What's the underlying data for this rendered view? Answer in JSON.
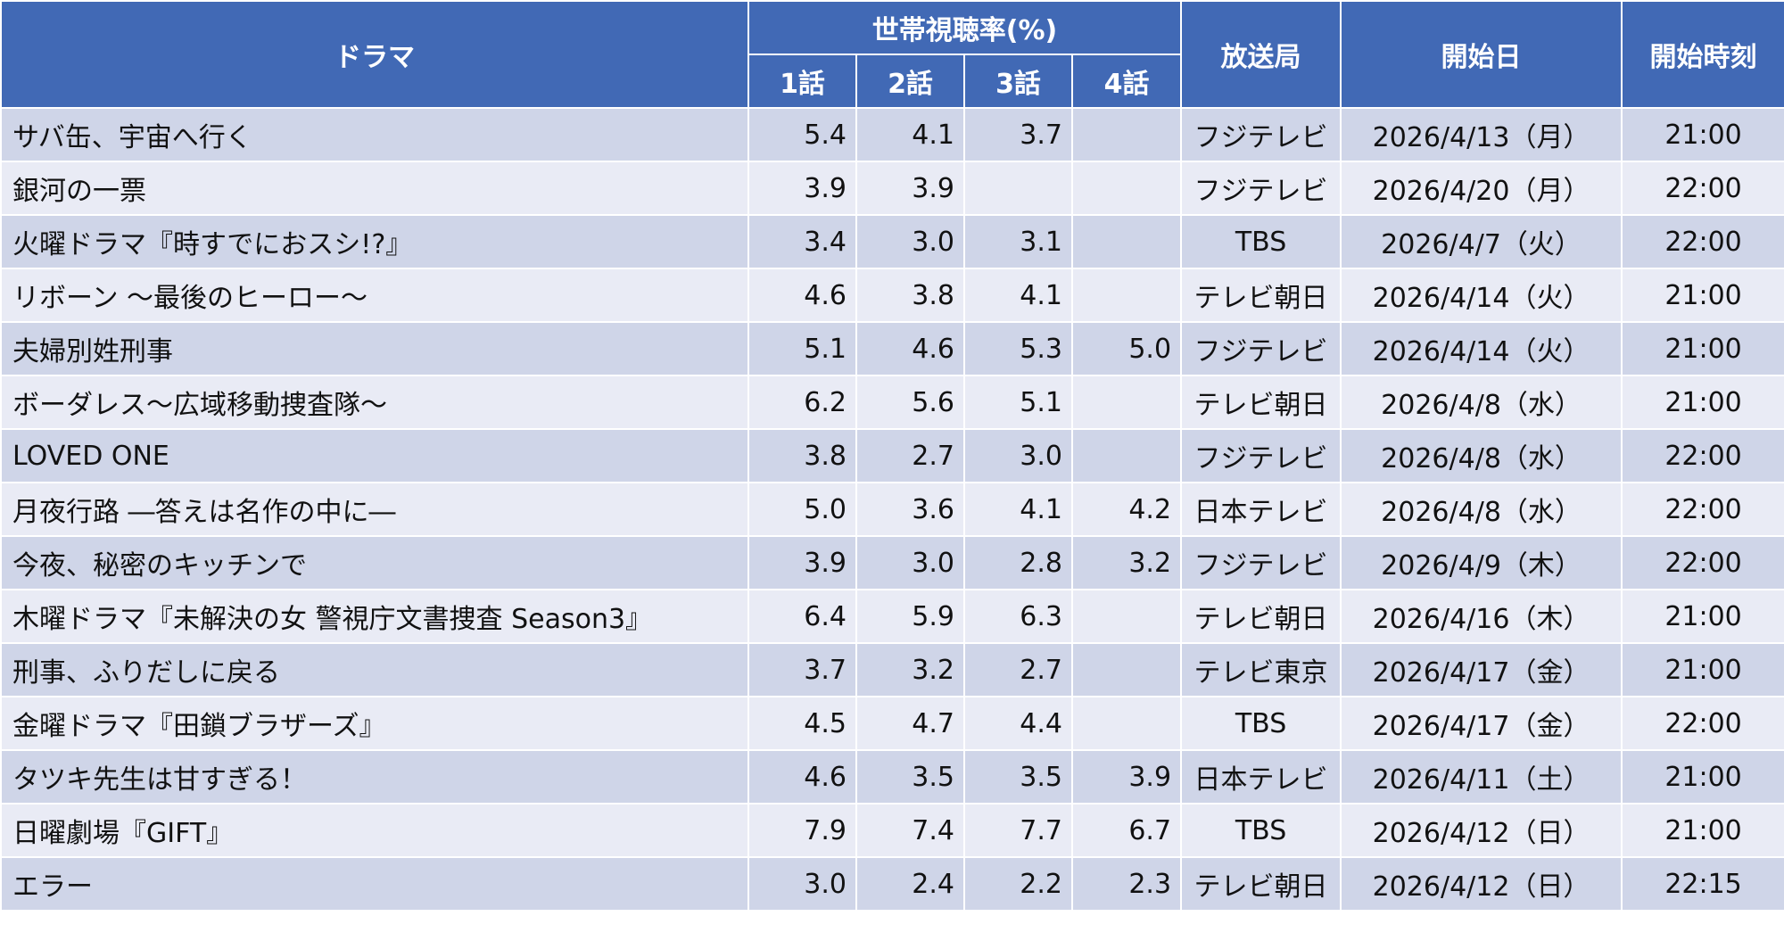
{
  "table": {
    "header": {
      "drama": "ドラマ",
      "ratings": "世帯視聴率(%)",
      "episodes": [
        "1話",
        "2話",
        "3話",
        "4話"
      ],
      "station": "放送局",
      "start_date": "開始日",
      "start_time": "開始時刻"
    },
    "rows": [
      [
        "サバ缶、宇宙へ行く",
        "5.4",
        "4.1",
        "3.7",
        null,
        "フジテレビ",
        "2026/4/13（月）",
        "21:00"
      ],
      [
        "銀河の一票",
        "3.9",
        "3.9",
        null,
        null,
        "フジテレビ",
        "2026/4/20（月）",
        "22:00"
      ],
      [
        "火曜ドラマ『時すでにおスシ!?』",
        "3.4",
        "3.0",
        "3.1",
        null,
        "TBS",
        "2026/4/7（火）",
        "22:00"
      ],
      [
        "リボーン ～最後のヒーロー～",
        "4.6",
        "3.8",
        "4.1",
        null,
        "テレビ朝日",
        "2026/4/14（火）",
        "21:00"
      ],
      [
        "夫婦別姓刑事",
        "5.1",
        "4.6",
        "5.3",
        "5.0",
        "フジテレビ",
        "2026/4/14（火）",
        "21:00"
      ],
      [
        "ボーダレス～広域移動捜査隊～",
        "6.2",
        "5.6",
        "5.1",
        null,
        "テレビ朝日",
        "2026/4/8（水）",
        "21:00"
      ],
      [
        "LOVED ONE",
        "3.8",
        "2.7",
        "3.0",
        null,
        "フジテレビ",
        "2026/4/8（水）",
        "22:00"
      ],
      [
        "月夜行路 ―答えは名作の中に―",
        "5.0",
        "3.6",
        "4.1",
        "4.2",
        "日本テレビ",
        "2026/4/8（水）",
        "22:00"
      ],
      [
        "今夜、秘密のキッチンで",
        "3.9",
        "3.0",
        "2.8",
        "3.2",
        "フジテレビ",
        "2026/4/9（木）",
        "22:00"
      ],
      [
        "木曜ドラマ『未解決の女 警視庁文書捜査 Season3』",
        "6.4",
        "5.9",
        "6.3",
        null,
        "テレビ朝日",
        "2026/4/16（木）",
        "21:00"
      ],
      [
        "刑事、ふりだしに戻る",
        "3.7",
        "3.2",
        "2.7",
        null,
        "テレビ東京",
        "2026/4/17（金）",
        "21:00"
      ],
      [
        "金曜ドラマ『田鎖ブラザーズ』",
        "4.5",
        "4.7",
        "4.4",
        null,
        "TBS",
        "2026/4/17（金）",
        "22:00"
      ],
      [
        "タツキ先生は甘すぎる！",
        "4.6",
        "3.5",
        "3.5",
        "3.9",
        "日本テレビ",
        "2026/4/11（土）",
        "21:00"
      ],
      [
        "日曜劇場『GIFT』",
        "7.9",
        "7.4",
        "7.7",
        "6.7",
        "TBS",
        "2026/4/12（日）",
        "21:00"
      ],
      [
        "エラー",
        "3.0",
        "2.4",
        "2.2",
        "2.3",
        "テレビ朝日",
        "2026/4/12（日）",
        "22:15"
      ]
    ]
  }
}
